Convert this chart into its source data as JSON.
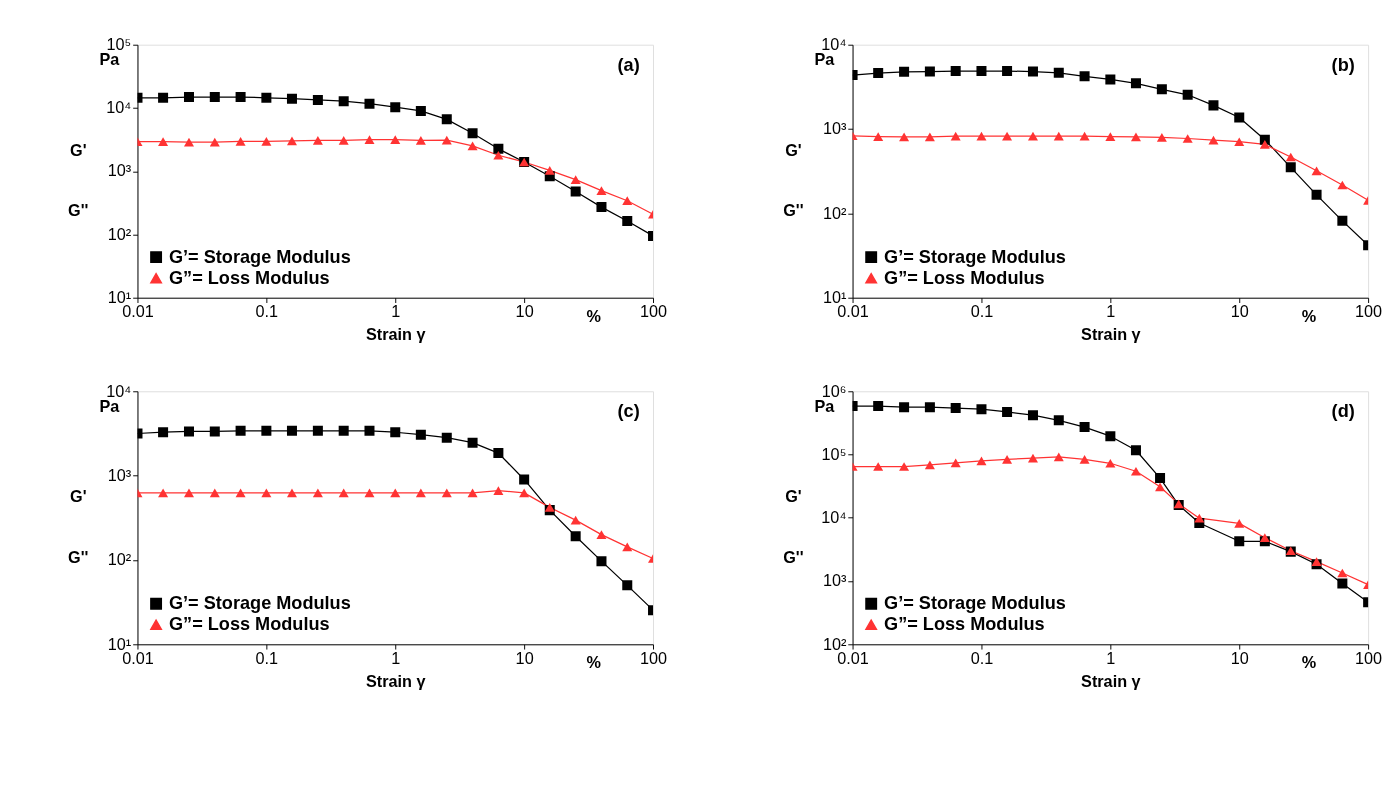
{
  "chart_data": [
    {
      "type": "line",
      "title": "(a)",
      "xlabel": "Strain γ",
      "ylabel": "Pa",
      "annotations": [
        "%",
        "G'",
        "G''"
      ],
      "log": "xy",
      "marker": "square",
      "legend": "bottom left",
      "grid": false,
      "x": [
        0.01,
        0.0158,
        0.0251,
        0.0398,
        0.0631,
        0.1,
        0.158,
        0.251,
        0.398,
        0.631,
        1,
        1.58,
        2.51,
        3.98,
        6.31,
        10,
        15.8,
        25.1,
        39.8,
        63.1,
        100
      ],
      "xlim": [
        0.01,
        100
      ],
      "xticks": [
        0.01,
        0.1,
        1,
        10,
        100
      ],
      "ylim": [
        10,
        100000
      ],
      "yticks": [
        {
          "value": 10,
          "label": "10¹"
        },
        {
          "value": 100,
          "label": "10²"
        },
        {
          "value": 1000,
          "label": "10³"
        },
        {
          "value": 10000,
          "label": "10⁴"
        },
        {
          "value": 100000,
          "label": "10⁵"
        }
      ],
      "series": [
        {
          "name": "G’= Storage Modulus",
          "color": "#000000",
          "marker": "square",
          "values": [
            14500,
            14500,
            14900,
            14900,
            14900,
            14500,
            14000,
            13400,
            12800,
            11700,
            10300,
            8980,
            6610,
            3980,
            2260,
            1400,
            832,
            479,
            271,
            163,
            95
          ]
        },
        {
          "name": "G”= Loss Modulus",
          "color": "#ff3333",
          "marker": "triangle",
          "values": [
            2930,
            2930,
            2880,
            2880,
            2970,
            2970,
            3020,
            3070,
            3070,
            3160,
            3160,
            3070,
            3110,
            2510,
            1790,
            1400,
            1030,
            736,
            494,
            342,
            209
          ]
        }
      ]
    },
    {
      "type": "line",
      "title": "(b)",
      "xlabel": "Strain γ",
      "ylabel": "Pa",
      "annotations": [
        "%",
        "G'",
        "G''"
      ],
      "log": "xy",
      "marker": "square",
      "legend": "bottom left",
      "grid": false,
      "x": [
        0.01,
        0.0158,
        0.0251,
        0.0398,
        0.0631,
        0.1,
        0.158,
        0.251,
        0.398,
        0.631,
        1,
        1.58,
        2.51,
        3.98,
        6.31,
        10,
        15.8,
        25.1,
        39.8,
        63.1,
        100
      ],
      "xlim": [
        0.01,
        100
      ],
      "xticks": [
        0.01,
        0.1,
        1,
        10,
        100
      ],
      "ylim": [
        10,
        10000
      ],
      "yticks": [
        {
          "value": 10,
          "label": "10¹"
        },
        {
          "value": 100,
          "label": "10²"
        },
        {
          "value": 1000,
          "label": "10³"
        },
        {
          "value": 10000,
          "label": "10⁴"
        }
      ],
      "series": [
        {
          "name": "G’= Storage Modulus",
          "color": "#000000",
          "marker": "square",
          "values": [
            4370,
            4620,
            4770,
            4810,
            4870,
            4870,
            4870,
            4810,
            4650,
            4220,
            3880,
            3490,
            2960,
            2550,
            1910,
            1370,
            748,
            352,
            166,
            81.6,
            42
          ]
        },
        {
          "name": "G”= Loss Modulus",
          "color": "#ff3333",
          "marker": "triangle",
          "values": [
            833,
            815,
            807,
            807,
            824,
            824,
            824,
            824,
            824,
            824,
            815,
            807,
            798,
            773,
            740,
            708,
            657,
            466,
            320,
            217,
            143
          ]
        }
      ]
    },
    {
      "type": "line",
      "title": "(c)",
      "xlabel": "Strain γ",
      "ylabel": "Pa",
      "annotations": [
        "%",
        "G'",
        "G''"
      ],
      "log": "xy",
      "marker": "square",
      "legend": "bottom left",
      "grid": false,
      "x": [
        0.01,
        0.0158,
        0.0251,
        0.0398,
        0.0631,
        0.1,
        0.158,
        0.251,
        0.398,
        0.631,
        1,
        1.58,
        2.51,
        3.98,
        6.31,
        10,
        15.8,
        25.1,
        39.8,
        63.1,
        100
      ],
      "xlim": [
        0.01,
        100
      ],
      "xticks": [
        0.01,
        0.1,
        1,
        10,
        100
      ],
      "ylim": [
        10,
        10000
      ],
      "yticks": [
        {
          "value": 10,
          "label": "10¹"
        },
        {
          "value": 100,
          "label": "10²"
        },
        {
          "value": 1000,
          "label": "10³"
        },
        {
          "value": 10000,
          "label": "10⁴"
        }
      ],
      "series": [
        {
          "name": "G’= Storage Modulus",
          "color": "#000000",
          "marker": "square",
          "values": [
            3160,
            3270,
            3340,
            3340,
            3400,
            3400,
            3400,
            3400,
            3400,
            3400,
            3270,
            3060,
            2820,
            2460,
            1850,
            901,
            390,
            191,
            96.8,
            50,
            25.4
          ]
        },
        {
          "name": "G”= Loss Modulus",
          "color": "#ff3333",
          "marker": "triangle",
          "values": [
            624,
            624,
            624,
            624,
            624,
            624,
            624,
            624,
            624,
            624,
            624,
            624,
            624,
            624,
            665,
            624,
            420,
            297,
            200,
            143,
            104
          ]
        }
      ]
    },
    {
      "type": "line",
      "title": "(d)",
      "xlabel": "Strain γ",
      "ylabel": "Pa",
      "annotations": [
        "%",
        "G'",
        "G''"
      ],
      "log": "xy",
      "marker": "square",
      "legend": "bottom left",
      "grid": false,
      "x": [
        0.01,
        0.0158,
        0.0251,
        0.0398,
        0.0631,
        0.1,
        0.158,
        0.251,
        0.398,
        0.631,
        1,
        1.58,
        2.43,
        3.39,
        4.9,
        10,
        15.8,
        25.1,
        39.8,
        63.1,
        100
      ],
      "xlim": [
        0.01,
        100
      ],
      "xticks": [
        0.01,
        0.1,
        1,
        10,
        100
      ],
      "ylim": [
        100,
        1000000
      ],
      "yticks": [
        {
          "value": 100,
          "label": "10²"
        },
        {
          "value": 1000,
          "label": "10³"
        },
        {
          "value": 10000,
          "label": "10⁴"
        },
        {
          "value": 100000,
          "label": "10⁵"
        },
        {
          "value": 1000000,
          "label": "10⁶"
        }
      ],
      "series": [
        {
          "name": "G’= Storage Modulus",
          "color": "#000000",
          "marker": "square",
          "values": [
            584000,
            584000,
            560000,
            560000,
            544000,
            521000,
            471000,
            420000,
            348000,
            272000,
            195000,
            117000,
            42500,
            15900,
            8280,
            4250,
            4250,
            2920,
            1840,
            916,
            464
          ]
        },
        {
          "name": "G”= Loss Modulus",
          "color": "#ff3333",
          "marker": "triangle",
          "values": [
            64700,
            64700,
            64700,
            68500,
            73700,
            79300,
            84100,
            87800,
            91700,
            84100,
            72800,
            54500,
            30900,
            16600,
            9860,
            8170,
            4850,
            3010,
            2030,
            1340,
            877
          ]
        }
      ]
    }
  ]
}
